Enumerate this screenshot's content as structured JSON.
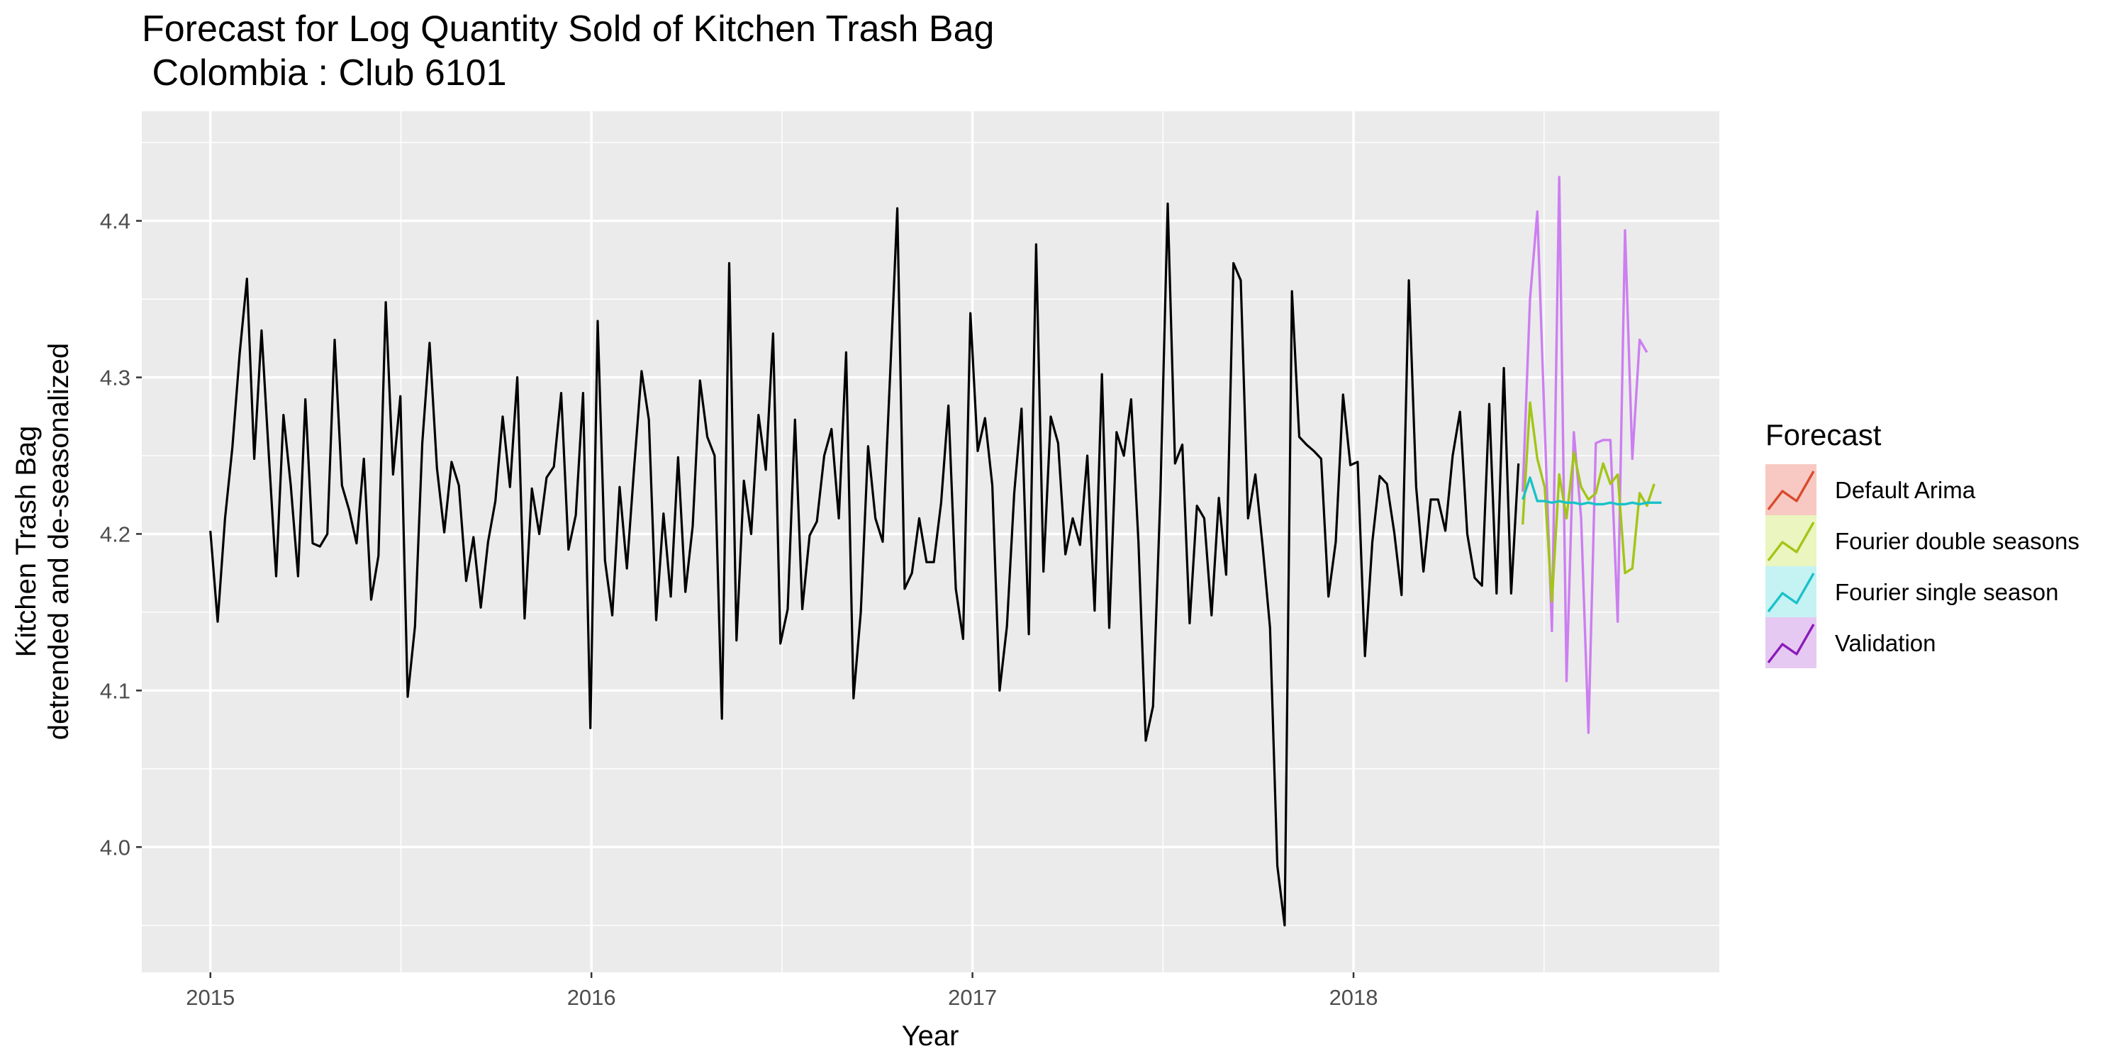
{
  "chart_data": {
    "type": "line",
    "title_line1": "Forecast for Log Quantity Sold of Kitchen Trash Bag",
    "title_line2": " Colombia : Club 6101",
    "xlabel": "Year",
    "ylabel_line1": "Kitchen Trash Bag",
    "ylabel_line2": "detrended and de-seasonalized",
    "xlim": [
      2014.82,
      2018.96
    ],
    "ylim": [
      3.92,
      4.47
    ],
    "x_ticks": [
      2015,
      2016,
      2017,
      2018
    ],
    "x_tick_labels": [
      "2015",
      "2016",
      "2017",
      "2018"
    ],
    "y_ticks": [
      4.0,
      4.1,
      4.2,
      4.3,
      4.4
    ],
    "y_tick_labels": [
      "4.0",
      "4.1",
      "4.2",
      "4.3",
      "4.4"
    ],
    "grid": true,
    "legend": {
      "title": "Forecast",
      "placement": "right",
      "entries": [
        {
          "label": "Default Arima",
          "color": "#d94a2e",
          "fill": "#f7c9c2"
        },
        {
          "label": "Fourier double seasons",
          "color": "#a3c516",
          "fill": "#eaf5c0"
        },
        {
          "label": "Fourier single season",
          "color": "#19c2c8",
          "fill": "#c5f2f3"
        },
        {
          "label": "Validation",
          "color": "#8a1bb8",
          "fill": "#e6c9f2"
        }
      ]
    },
    "series": [
      {
        "role": "history",
        "color": "#000000",
        "x_start": 2015.0,
        "x_step": 0.019178,
        "values": [
          4.202,
          4.144,
          4.21,
          4.255,
          4.315,
          4.363,
          4.248,
          4.33,
          4.25,
          4.173,
          4.276,
          4.231,
          4.173,
          4.286,
          4.194,
          4.192,
          4.2,
          4.324,
          4.231,
          4.215,
          4.194,
          4.248,
          4.158,
          4.186,
          4.348,
          4.238,
          4.288,
          4.096,
          4.141,
          4.258,
          4.322,
          4.242,
          4.201,
          4.246,
          4.231,
          4.17,
          4.198,
          4.153,
          4.195,
          4.221,
          4.275,
          4.23,
          4.3,
          4.146,
          4.229,
          4.2,
          4.236,
          4.243,
          4.29,
          4.19,
          4.212,
          4.29,
          4.076,
          4.336,
          4.183,
          4.148,
          4.23,
          4.178,
          4.243,
          4.304,
          4.273,
          4.145,
          4.213,
          4.16,
          4.249,
          4.163,
          4.205,
          4.298,
          4.262,
          4.25,
          4.082,
          4.373,
          4.132,
          4.234,
          4.2,
          4.276,
          4.241,
          4.328,
          4.13,
          4.152,
          4.273,
          4.152,
          4.199,
          4.208,
          4.25,
          4.267,
          4.21,
          4.316,
          4.095,
          4.15,
          4.256,
          4.21,
          4.195,
          4.3,
          4.408,
          4.165,
          4.175,
          4.21,
          4.182,
          4.182,
          4.22,
          4.282,
          4.165,
          4.133,
          4.341,
          4.253,
          4.274,
          4.231,
          4.1,
          4.141,
          4.226,
          4.28,
          4.136,
          4.385,
          4.176,
          4.275,
          4.258,
          4.187,
          4.21,
          4.193,
          4.25,
          4.151,
          4.302,
          4.14,
          4.265,
          4.25,
          4.286,
          4.195,
          4.068,
          4.09,
          4.226,
          4.411,
          4.245,
          4.257,
          4.143,
          4.218,
          4.21,
          4.148,
          4.223,
          4.174,
          4.373,
          4.362,
          4.21,
          4.238,
          4.192,
          4.14,
          3.988,
          3.95,
          4.355,
          4.262,
          4.257,
          4.253,
          4.248,
          4.16,
          4.195,
          4.289,
          4.244,
          4.246,
          4.122,
          4.195,
          4.237,
          4.232,
          4.201,
          4.161,
          4.362,
          4.23,
          4.176,
          4.222,
          4.222,
          4.202,
          4.25,
          4.278,
          4.2,
          4.172,
          4.167,
          4.283,
          4.162,
          4.306,
          4.162,
          4.245
        ]
      },
      {
        "name": "Fourier single season",
        "color": "#19c2c8",
        "x_start": 2018.444,
        "x_step": 0.019178,
        "values": [
          4.222,
          4.236,
          4.221,
          4.221,
          4.22,
          4.221,
          4.22,
          4.22,
          4.219,
          4.22,
          4.219,
          4.219,
          4.22,
          4.219,
          4.219,
          4.22,
          4.219,
          4.22,
          4.22,
          4.22
        ]
      },
      {
        "name": "Fourier double seasons",
        "color": "#a3c516",
        "x_start": 2018.444,
        "x_step": 0.019178,
        "values": [
          4.206,
          4.284,
          4.248,
          4.23,
          4.157,
          4.238,
          4.21,
          4.252,
          4.23,
          4.222,
          4.226,
          4.245,
          4.232,
          4.238,
          4.175,
          4.178,
          4.226,
          4.218,
          4.232
        ]
      },
      {
        "name": "Validation",
        "color": "#cc7ff0",
        "x_start": 2018.444,
        "x_step": 0.019178,
        "values": [
          4.227,
          4.35,
          4.406,
          4.27,
          4.138,
          4.428,
          4.106,
          4.265,
          4.21,
          4.073,
          4.258,
          4.26,
          4.26,
          4.144,
          4.394,
          4.248,
          4.324,
          4.316
        ]
      }
    ]
  }
}
